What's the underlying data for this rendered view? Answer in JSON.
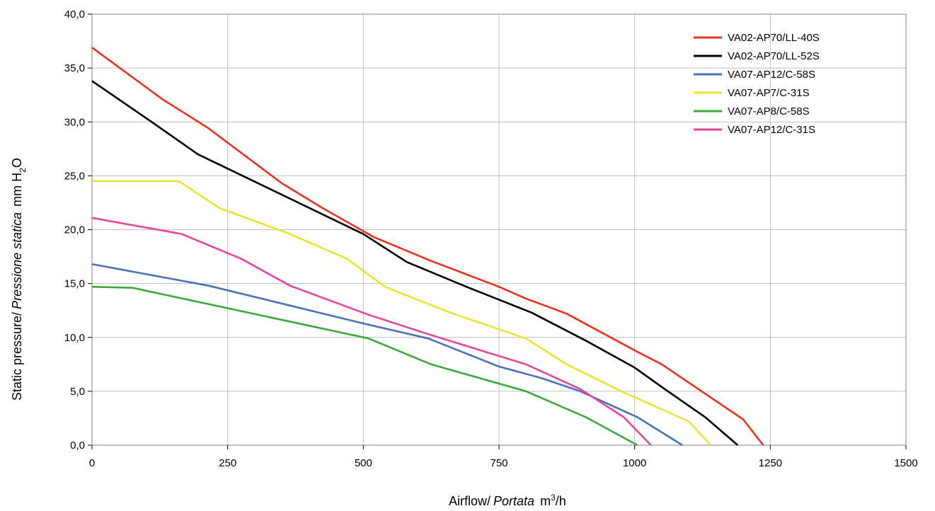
{
  "chart_data": {
    "type": "line",
    "xlabel": {
      "main": "Airflow",
      "sep": "/",
      "italic": "Portata",
      "unit_base": "m",
      "unit_sup": "3",
      "unit_tail": "/h"
    },
    "ylabel": {
      "main": "Static pressure",
      "sep": "/",
      "italic": "Pressione statica",
      "unit_base": "mm H",
      "unit_sub": "2",
      "unit_tail": "O"
    },
    "xlim": [
      0,
      1500
    ],
    "ylim": [
      0,
      40
    ],
    "x_ticks": [
      0,
      250,
      500,
      750,
      1000,
      1250,
      1500
    ],
    "x_tick_labels": [
      "0",
      "250",
      "500",
      "750",
      "1000",
      "1250",
      "1500"
    ],
    "y_ticks": [
      0,
      5,
      10,
      15,
      20,
      25,
      30,
      35,
      40
    ],
    "y_tick_labels": [
      "0,0",
      "5,0",
      "10,0",
      "15,0",
      "20,0",
      "25,0",
      "30,0",
      "35,0",
      "40,0"
    ],
    "grid": true,
    "legend_position": "top-right",
    "series": [
      {
        "name": "VA02-AP70/LL-40S",
        "color": "#e8321e",
        "points": [
          [
            0,
            36.9
          ],
          [
            130,
            32.1
          ],
          [
            215,
            29.4
          ],
          [
            350,
            24.3
          ],
          [
            425,
            22.0
          ],
          [
            520,
            19.3
          ],
          [
            620,
            17.2
          ],
          [
            750,
            14.7
          ],
          [
            800,
            13.6
          ],
          [
            875,
            12.2
          ],
          [
            1000,
            8.8
          ],
          [
            1050,
            7.5
          ],
          [
            1200,
            2.4
          ],
          [
            1237,
            0.0
          ]
        ]
      },
      {
        "name": "VA02-AP70/LL-52S",
        "color": "#000000",
        "points": [
          [
            0,
            33.8
          ],
          [
            110,
            30.0
          ],
          [
            195,
            27.0
          ],
          [
            500,
            19.6
          ],
          [
            580,
            17.0
          ],
          [
            690,
            14.7
          ],
          [
            810,
            12.3
          ],
          [
            910,
            9.7
          ],
          [
            1000,
            7.2
          ],
          [
            1050,
            5.4
          ],
          [
            1130,
            2.6
          ],
          [
            1190,
            0.0
          ]
        ]
      },
      {
        "name": "VA07-AP12/C-58S",
        "color": "#4a72b8",
        "points": [
          [
            0,
            16.8
          ],
          [
            215,
            14.8
          ],
          [
            500,
            11.3
          ],
          [
            620,
            9.9
          ],
          [
            750,
            7.3
          ],
          [
            830,
            6.2
          ],
          [
            900,
            5.0
          ],
          [
            1005,
            2.6
          ],
          [
            1088,
            0.0
          ]
        ]
      },
      {
        "name": "VA07-AP7/C-31S",
        "color": "#e6e632",
        "points": [
          [
            0,
            24.5
          ],
          [
            160,
            24.5
          ],
          [
            235,
            22.0
          ],
          [
            360,
            19.7
          ],
          [
            470,
            17.3
          ],
          [
            540,
            14.7
          ],
          [
            660,
            12.3
          ],
          [
            800,
            9.9
          ],
          [
            875,
            7.5
          ],
          [
            980,
            4.9
          ],
          [
            1100,
            2.2
          ],
          [
            1140,
            0.0
          ]
        ]
      },
      {
        "name": "VA07-AP8/C-58S",
        "color": "#3aaa3c",
        "points": [
          [
            0,
            14.7
          ],
          [
            75,
            14.6
          ],
          [
            510,
            9.9
          ],
          [
            625,
            7.5
          ],
          [
            800,
            5.0
          ],
          [
            910,
            2.6
          ],
          [
            1005,
            0.0
          ]
        ]
      },
      {
        "name": "VA07-AP12/C-31S",
        "color": "#e64696",
        "points": [
          [
            0,
            21.1
          ],
          [
            165,
            19.6
          ],
          [
            275,
            17.3
          ],
          [
            365,
            14.8
          ],
          [
            510,
            12.1
          ],
          [
            620,
            10.3
          ],
          [
            800,
            7.5
          ],
          [
            900,
            5.2
          ],
          [
            980,
            2.6
          ],
          [
            1030,
            0.0
          ]
        ]
      }
    ]
  }
}
